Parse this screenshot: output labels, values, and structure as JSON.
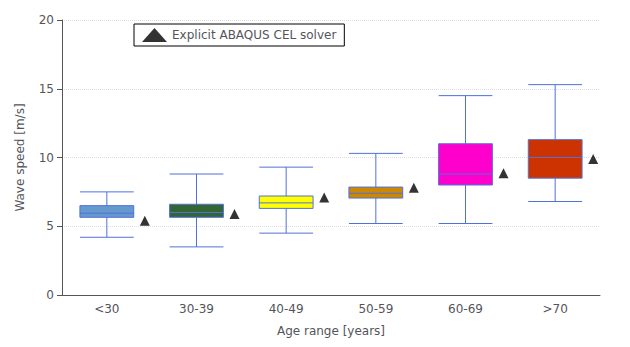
{
  "chart_data": {
    "type": "box",
    "xlabel": "Age range [years]",
    "ylabel": "Wave speed [m/s]",
    "categories": [
      "<30",
      "30-39",
      "40-49",
      "50-59",
      "60-69",
      ">70"
    ],
    "boxes": [
      {
        "whislo": 4.2,
        "q1": 5.65,
        "med": 5.95,
        "q3": 6.5,
        "whishi": 7.5
      },
      {
        "whislo": 3.5,
        "q1": 5.65,
        "med": 6.0,
        "q3": 6.6,
        "whishi": 8.8
      },
      {
        "whislo": 4.5,
        "q1": 6.3,
        "med": 6.7,
        "q3": 7.2,
        "whishi": 9.3
      },
      {
        "whislo": 5.2,
        "q1": 7.05,
        "med": 7.4,
        "q3": 7.85,
        "whishi": 10.3
      },
      {
        "whislo": 5.2,
        "q1": 8.0,
        "med": 8.8,
        "q3": 11.0,
        "whishi": 14.5
      },
      {
        "whislo": 6.8,
        "q1": 8.5,
        "med": 10.0,
        "q3": 11.3,
        "whishi": 15.3
      }
    ],
    "colors": [
      "#6699CC",
      "#336633",
      "#FFFF00",
      "#CC8800",
      "#FF00CC",
      "#CC3300"
    ],
    "series": [
      {
        "name": "Explicit ABAQUS CEL solver",
        "type": "scatter",
        "marker": "triangle",
        "color": "#000000",
        "values": [
          5.4,
          5.9,
          7.1,
          7.8,
          8.85,
          9.9
        ]
      }
    ],
    "ylim": [
      0,
      20
    ],
    "yticks": [
      0,
      5,
      10,
      15,
      20
    ],
    "grid": true,
    "legend": "upper left"
  }
}
